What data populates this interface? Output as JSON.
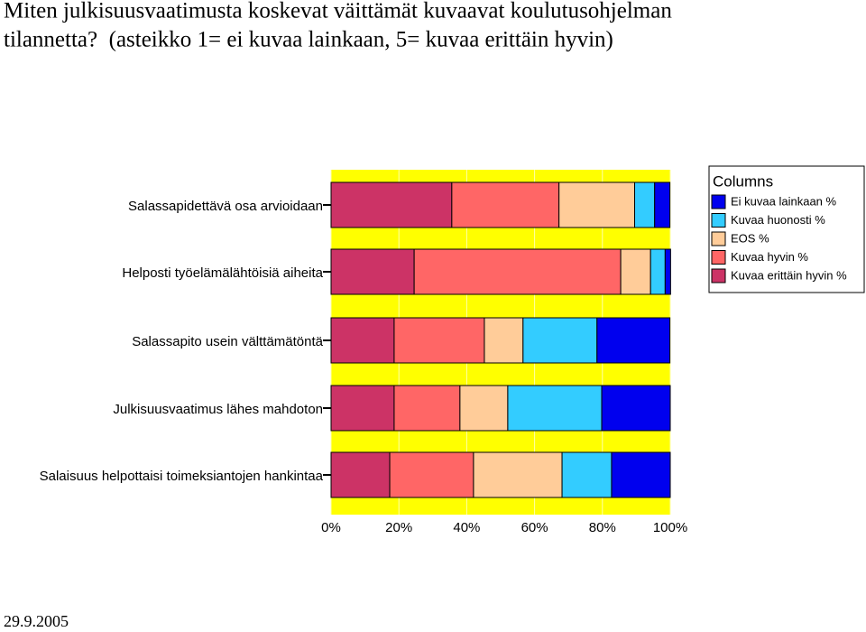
{
  "chart_data": {
    "type": "stacked-barh",
    "title": "Miten julkisuusvaatimusta koskevat väittämät kuvaavat koulutusohjelman",
    "subtitle": "tilannetta?  (asteikko 1= ei kuvaa lainkaan, 5= kuvaa erittäin hyvin)",
    "date": "29.9.2005",
    "legend_title": "Columns",
    "categories": [
      "Salassapidettävä osa arvioidaan",
      "Helposti työelämälähtöisiä aiheita",
      "Salassapito usein välttämätöntä",
      "Julkisuusvaatimus lähes mahdoton",
      "Salaisuus helpottaisi toimeksiantojen hankintaa"
    ],
    "series": [
      {
        "name": "Kuvaa erittäin hyvin %",
        "color": "#cc3366",
        "values": [
          35.6,
          24.5,
          18.6,
          18.6,
          17.3
        ]
      },
      {
        "name": "Kuvaa  hyvin %",
        "color": "#ff6666",
        "values": [
          31.6,
          60.9,
          26.6,
          19.4,
          24.7
        ]
      },
      {
        "name": "EOS %",
        "color": "#ffcc99",
        "values": [
          22.3,
          8.8,
          11.4,
          14.1,
          26.1
        ]
      },
      {
        "name": "Kuvaa huonosti %",
        "color": "#33ccff",
        "values": [
          5.9,
          4.3,
          21.8,
          27.7,
          14.6
        ]
      },
      {
        "name": "Ei kuvaa lainkaan %",
        "color": "#0000ee",
        "values": [
          4.5,
          1.6,
          21.5,
          20.2,
          17.3
        ]
      }
    ],
    "xlim": [
      0,
      100
    ],
    "xticks": [
      {
        "value": 0,
        "label": "0%"
      },
      {
        "value": 20,
        "label": "20%"
      },
      {
        "value": 40,
        "label": "40%"
      },
      {
        "value": 60,
        "label": "60%"
      },
      {
        "value": 80,
        "label": "80%"
      },
      {
        "value": 100,
        "label": "100%"
      }
    ],
    "grid": true
  }
}
